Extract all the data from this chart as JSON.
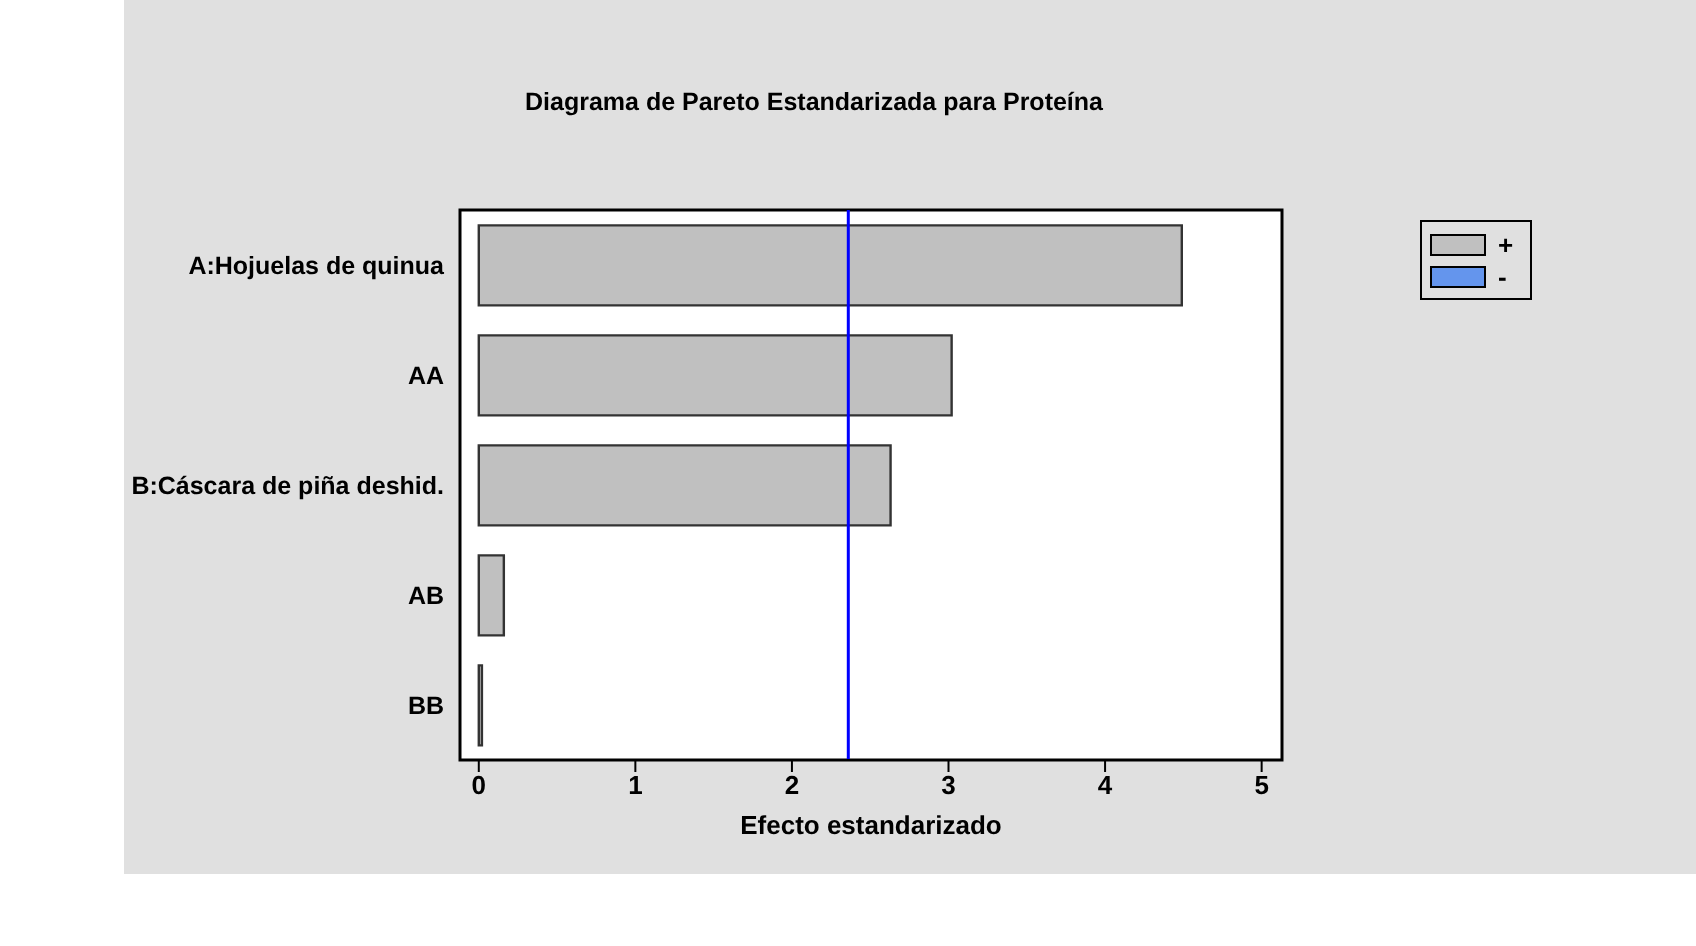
{
  "chart_data": {
    "type": "bar",
    "orientation": "horizontal",
    "title": "Diagrama de Pareto Estandarizada para Proteína",
    "xlabel": "Efecto estandarizado",
    "categories": [
      "A:Hojuelas de quinua",
      "AA",
      "B:Cáscara de piña deshid.",
      "AB",
      "BB"
    ],
    "series": [
      {
        "name": "+",
        "color": "#c0c0c0",
        "values": [
          4.49,
          3.02,
          2.63,
          0.16,
          0.02
        ]
      },
      {
        "name": "-",
        "color": "#6495ed",
        "values": [
          null,
          null,
          null,
          null,
          null
        ]
      }
    ],
    "xlim": [
      -0.12,
      5.13
    ],
    "xticks": [
      0,
      1,
      2,
      3,
      4,
      5
    ],
    "ref_lines": [
      {
        "axis": "x",
        "value": 2.36,
        "color": "#0000ff"
      }
    ],
    "legend": "top right"
  }
}
